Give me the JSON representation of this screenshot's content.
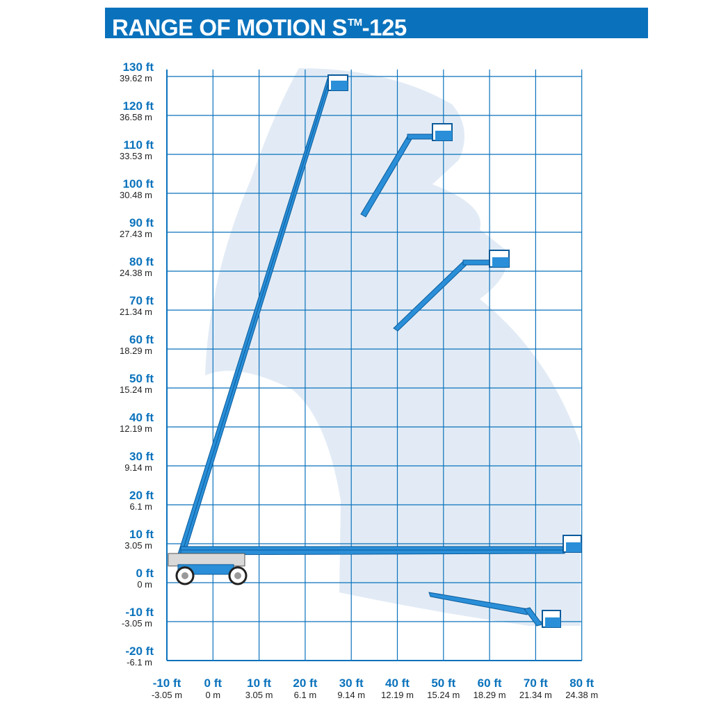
{
  "header": {
    "title_main": "RANGE OF MOTION S",
    "title_tm": "TM",
    "title_model": "-125"
  },
  "y_axis": [
    {
      "ft": "130 ft",
      "m": "39.62 m",
      "value": 130
    },
    {
      "ft": "120 ft",
      "m": "36.58 m",
      "value": 120
    },
    {
      "ft": "110 ft",
      "m": "33.53 m",
      "value": 110
    },
    {
      "ft": "100 ft",
      "m": "30.48 m",
      "value": 100
    },
    {
      "ft": "90 ft",
      "m": "27.43 m",
      "value": 90
    },
    {
      "ft": "80 ft",
      "m": "24.38 m",
      "value": 80
    },
    {
      "ft": "70 ft",
      "m": "21.34 m",
      "value": 70
    },
    {
      "ft": "60 ft",
      "m": "18.29 m",
      "value": 60
    },
    {
      "ft": "50 ft",
      "m": "15.24 m",
      "value": 50
    },
    {
      "ft": "40 ft",
      "m": "12.19 m",
      "value": 40
    },
    {
      "ft": "30 ft",
      "m": "9.14 m",
      "value": 30
    },
    {
      "ft": "20 ft",
      "m": "6.1 m",
      "value": 20
    },
    {
      "ft": "10 ft",
      "m": "3.05 m",
      "value": 10
    },
    {
      "ft": "0 ft",
      "m": "0 m",
      "value": 0
    },
    {
      "ft": "-10 ft",
      "m": "-3.05 m",
      "value": -10
    },
    {
      "ft": "-20 ft",
      "m": "-6.1 m",
      "value": -20
    }
  ],
  "x_axis": [
    {
      "ft": "-10 ft",
      "m": "-3.05 m",
      "value": -10
    },
    {
      "ft": "0 ft",
      "m": "0 m",
      "value": 0
    },
    {
      "ft": "10 ft",
      "m": "3.05 m",
      "value": 10
    },
    {
      "ft": "20 ft",
      "m": "6.1 m",
      "value": 20
    },
    {
      "ft": "30 ft",
      "m": "9.14 m",
      "value": 30
    },
    {
      "ft": "40 ft",
      "m": "12.19 m",
      "value": 40
    },
    {
      "ft": "50 ft",
      "m": "15.24 m",
      "value": 50
    },
    {
      "ft": "60 ft",
      "m": "18.29 m",
      "value": 60
    },
    {
      "ft": "70 ft",
      "m": "21.34 m",
      "value": 70
    },
    {
      "ft": "80 ft",
      "m": "24.38 m",
      "value": 80
    }
  ],
  "colors": {
    "brand_blue": "#0a72bc",
    "boom_blue": "#2a8fd8",
    "envelope": "#e2ebf5",
    "grid": "#0a72bc"
  },
  "boom_positions": [
    {
      "name": "full-height",
      "platform_x_ft": 27,
      "platform_y_ft": 127
    },
    {
      "name": "upper-arc",
      "platform_x_ft": 50,
      "platform_y_ft": 116
    },
    {
      "name": "mid-arc",
      "platform_x_ft": 60,
      "platform_y_ft": 82
    },
    {
      "name": "horizontal",
      "platform_x_ft": 77,
      "platform_y_ft": 10
    },
    {
      "name": "below-grade",
      "platform_x_ft": 72,
      "platform_y_ft": -9
    }
  ]
}
